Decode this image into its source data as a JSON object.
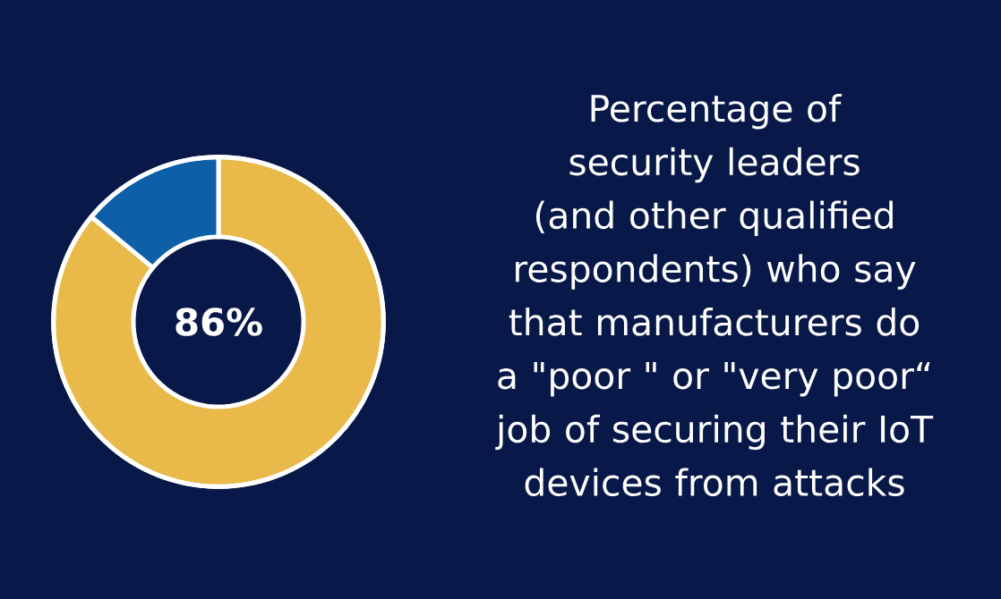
{
  "chart_data": {
    "type": "donut",
    "title": "Percentage of security leaders (and other qualified respondents) who say that manufacturers do a \"poor \" or \"very poor“ job of securing their IoT devices from attacks",
    "categories": [
      null,
      null
    ],
    "values": [
      86,
      14
    ],
    "colors": [
      "#e9b949",
      "#0d5fa8"
    ],
    "annotations": [
      "86%"
    ]
  }
}
